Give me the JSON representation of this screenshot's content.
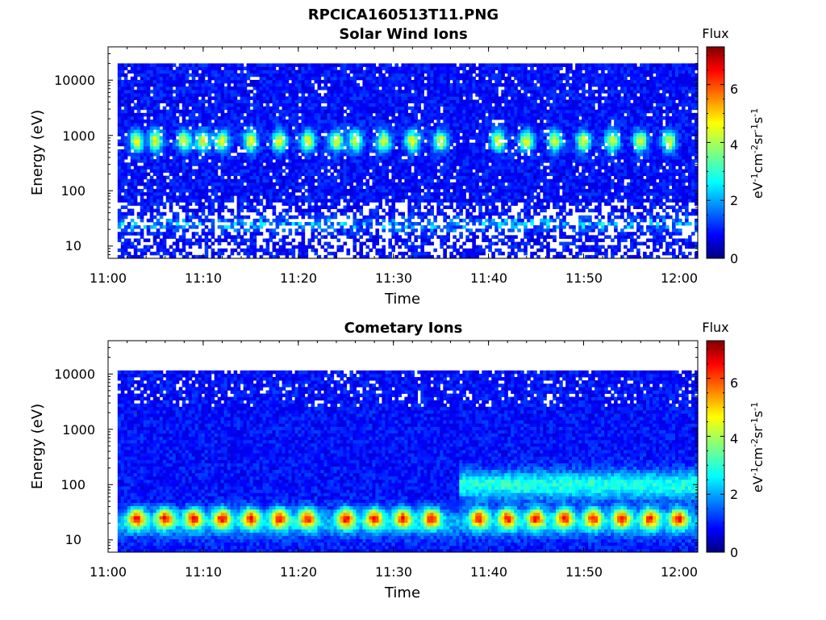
{
  "figure": {
    "filename": "RPCICA160513T11.PNG"
  },
  "colors": {
    "background": "#ffffff",
    "axis": "#000000",
    "colormap": "jet"
  },
  "chart_data": [
    {
      "type": "heatmap",
      "title": "Solar Wind Ions",
      "xlabel": "Time",
      "ylabel": "Energy (eV)",
      "x_ticks": [
        "11:00",
        "11:10",
        "11:20",
        "11:30",
        "11:40",
        "11:50",
        "12:00"
      ],
      "x_range": [
        "11:00",
        "12:02"
      ],
      "y_scale": "log",
      "y_ticks": [
        "10",
        "100",
        "1000",
        "10000"
      ],
      "y_range": [
        6,
        40000
      ],
      "colorbar": {
        "label_top": "Flux",
        "label": "eV-1cm-2sr-1s-1",
        "ticks": [
          "0",
          "2",
          "4",
          "6"
        ],
        "range": [
          0,
          7.3
        ]
      },
      "features": {
        "background_flux": 1.0,
        "data_start": "11:01",
        "solar_wind_peak_energy_eV": 800,
        "solar_wind_peak_flux": 3.5,
        "solar_wind_bursts_at": [
          "11:03",
          "11:05",
          "11:08",
          "11:10",
          "11:12",
          "11:15",
          "11:18",
          "11:21",
          "11:24",
          "11:26",
          "11:29",
          "11:32",
          "11:35",
          "11:41",
          "11:44",
          "11:47",
          "11:50",
          "11:53",
          "11:56",
          "11:59"
        ],
        "low_energy_band_eV": 25,
        "low_energy_band_flux": 2.6
      }
    },
    {
      "type": "heatmap",
      "title": "Cometary Ions",
      "xlabel": "Time",
      "ylabel": "Energy (eV)",
      "x_ticks": [
        "11:00",
        "11:10",
        "11:20",
        "11:30",
        "11:40",
        "11:50",
        "12:00"
      ],
      "x_range": [
        "11:00",
        "12:02"
      ],
      "y_scale": "log",
      "y_ticks": [
        "10",
        "100",
        "1000",
        "10000"
      ],
      "y_range": [
        6,
        40000
      ],
      "colorbar": {
        "label_top": "Flux",
        "label": "eV-1cm-2sr-1s-1",
        "ticks": [
          "0",
          "2",
          "4",
          "6"
        ],
        "range": [
          0,
          7.3
        ]
      },
      "features": {
        "background_flux": 1.0,
        "data_start": "11:01",
        "data_max_energy_eV": 11000,
        "cometary_peak_energy_eV": 25,
        "cometary_peak_flux": 5.3,
        "cometary_pulses_at": [
          "11:03",
          "11:06",
          "11:09",
          "11:12",
          "11:15",
          "11:18",
          "11:21",
          "11:25",
          "11:28",
          "11:31",
          "11:34",
          "11:39",
          "11:42",
          "11:45",
          "11:48",
          "11:51",
          "11:54",
          "11:57",
          "12:00"
        ],
        "enhanced_band_after": "11:37",
        "enhanced_band_eV": 100,
        "enhanced_band_flux": 3.0
      }
    }
  ]
}
